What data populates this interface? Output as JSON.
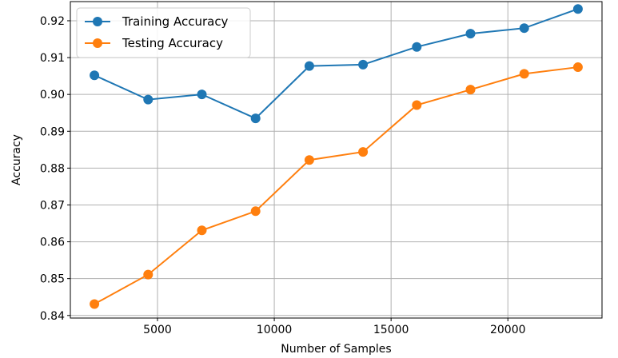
{
  "chart_data": {
    "type": "line",
    "title": "",
    "xlabel": "Number of Samples",
    "ylabel": "Accuracy",
    "x": [
      2300,
      4600,
      6900,
      9200,
      11500,
      13800,
      16100,
      18400,
      20700,
      23000
    ],
    "xlim": [
      1270,
      24030
    ],
    "ylim": [
      0.8393,
      0.9252
    ],
    "xticks": [
      5000,
      10000,
      15000,
      20000
    ],
    "xtick_labels": [
      "5000",
      "10000",
      "15000",
      "20000"
    ],
    "yticks": [
      0.84,
      0.85,
      0.86,
      0.87,
      0.88,
      0.89,
      0.9,
      0.91,
      0.92
    ],
    "ytick_labels": [
      "0.84",
      "0.85",
      "0.86",
      "0.87",
      "0.88",
      "0.89",
      "0.90",
      "0.91",
      "0.92"
    ],
    "grid": true,
    "legend_position": "top-left",
    "series": [
      {
        "name": "Training Accuracy",
        "color": "#1f77b4",
        "values": [
          0.9052,
          0.8986,
          0.9,
          0.8935,
          0.9077,
          0.9081,
          0.9129,
          0.9165,
          0.918,
          0.9232
        ]
      },
      {
        "name": "Testing Accuracy",
        "color": "#ff7f0e",
        "values": [
          0.8431,
          0.8511,
          0.8631,
          0.8683,
          0.8822,
          0.8844,
          0.8971,
          0.9013,
          0.9056,
          0.9074
        ]
      }
    ]
  }
}
